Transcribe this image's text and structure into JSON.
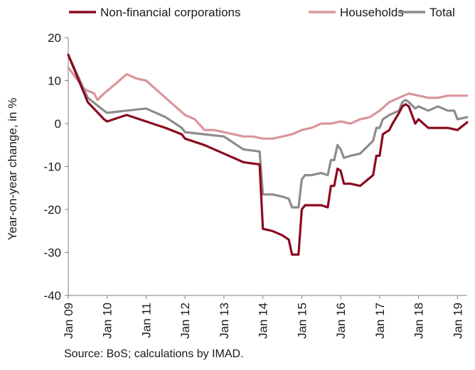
{
  "chart_data": {
    "type": "line",
    "ylabel": "Year-on-year change, in %",
    "ylim": [
      -40,
      20
    ],
    "yticks": [
      20,
      10,
      0,
      -10,
      -20,
      -30,
      -40
    ],
    "xlim": [
      "Jan 09",
      "Apr 19"
    ],
    "xticks": [
      "Jan 09",
      "Jan 10",
      "Jan 11",
      "Jan 12",
      "Jan 13",
      "Jan 14",
      "Jan 15",
      "Jan 16",
      "Jan 17",
      "Jan 18",
      "Jan 19"
    ],
    "grid": false,
    "legend_position": "top",
    "source": "Source: BoS; calculations by IMAD.",
    "series": [
      {
        "name": "Non-financial corporations",
        "color": "#8b0a1f",
        "points": [
          [
            "Jan 09",
            16
          ],
          [
            "Jul 09",
            5
          ],
          [
            "Dec 09",
            1
          ],
          [
            "Jan 10",
            0.5
          ],
          [
            "Jul 10",
            2
          ],
          [
            "Jan 11",
            0.5
          ],
          [
            "Jul 11",
            -1
          ],
          [
            "Dec 11",
            -2.5
          ],
          [
            "Jan 12",
            -3.5
          ],
          [
            "Jul 12",
            -5
          ],
          [
            "Jan 13",
            -7
          ],
          [
            "Jul 13",
            -9
          ],
          [
            "Dec 13",
            -9.5
          ],
          [
            "Jan 14",
            -24.5
          ],
          [
            "Apr 14",
            -25
          ],
          [
            "Jul 14",
            -26
          ],
          [
            "Sep 14",
            -27
          ],
          [
            "Oct 14",
            -30.5
          ],
          [
            "Dec 14",
            -30.5
          ],
          [
            "Jan 15",
            -20
          ],
          [
            "Feb 15",
            -19
          ],
          [
            "Apr 15",
            -19
          ],
          [
            "Jul 15",
            -19
          ],
          [
            "Sep 15",
            -19.5
          ],
          [
            "Oct 15",
            -14.5
          ],
          [
            "Nov 15",
            -14.5
          ],
          [
            "Dec 15",
            -10.5
          ],
          [
            "Jan 16",
            -11
          ],
          [
            "Feb 16",
            -14
          ],
          [
            "Apr 16",
            -14
          ],
          [
            "Jul 16",
            -14.5
          ],
          [
            "Nov 16",
            -12
          ],
          [
            "Dec 16",
            -7.5
          ],
          [
            "Jan 17",
            -7.5
          ],
          [
            "Feb 17",
            -2.5
          ],
          [
            "Apr 17",
            -1.5
          ],
          [
            "May 17",
            0
          ],
          [
            "Jul 17",
            2.5
          ],
          [
            "Aug 17",
            4
          ],
          [
            "Sep 17",
            4.5
          ],
          [
            "Oct 17",
            4
          ],
          [
            "Dec 17",
            0
          ],
          [
            "Jan 18",
            1
          ],
          [
            "Apr 18",
            -1
          ],
          [
            "Jul 18",
            -1
          ],
          [
            "Oct 18",
            -1
          ],
          [
            "Jan 19",
            -1.5
          ],
          [
            "Apr 19",
            0.3
          ]
        ]
      },
      {
        "name": "Households",
        "color": "#d9959a",
        "points": [
          [
            "Jan 09",
            13
          ],
          [
            "Jun 09",
            8
          ],
          [
            "Sep 09",
            7
          ],
          [
            "Oct 09",
            5.5
          ],
          [
            "Dec 09",
            7
          ],
          [
            "Apr 10",
            9.5
          ],
          [
            "Jul 10",
            11.5
          ],
          [
            "Oct 10",
            10.5
          ],
          [
            "Jan 11",
            10
          ],
          [
            "Apr 11",
            8
          ],
          [
            "Jul 11",
            6
          ],
          [
            "Oct 11",
            4
          ],
          [
            "Jan 12",
            2
          ],
          [
            "Apr 12",
            1
          ],
          [
            "Jul 12",
            -1.5
          ],
          [
            "Oct 12",
            -1.5
          ],
          [
            "Jan 13",
            -2
          ],
          [
            "Apr 13",
            -2.5
          ],
          [
            "Jul 13",
            -3
          ],
          [
            "Oct 13",
            -3
          ],
          [
            "Jan 14",
            -3.5
          ],
          [
            "Apr 14",
            -3.5
          ],
          [
            "Jul 14",
            -3
          ],
          [
            "Oct 14",
            -2.5
          ],
          [
            "Jan 15",
            -1.5
          ],
          [
            "Apr 15",
            -1
          ],
          [
            "Jul 15",
            0
          ],
          [
            "Oct 15",
            0
          ],
          [
            "Jan 16",
            0.5
          ],
          [
            "Apr 16",
            0
          ],
          [
            "Jul 16",
            1
          ],
          [
            "Oct 16",
            1.5
          ],
          [
            "Jan 17",
            3
          ],
          [
            "Apr 17",
            5
          ],
          [
            "Jul 17",
            6
          ],
          [
            "Oct 17",
            7
          ],
          [
            "Jan 18",
            6.5
          ],
          [
            "Apr 18",
            6
          ],
          [
            "Jul 18",
            6
          ],
          [
            "Oct 18",
            6.5
          ],
          [
            "Jan 19",
            6.5
          ],
          [
            "Apr 19",
            6.5
          ]
        ]
      },
      {
        "name": "Total",
        "color": "#8c8c8c",
        "points": [
          [
            "Jan 09",
            16
          ],
          [
            "Jul 09",
            6
          ],
          [
            "Dec 09",
            3
          ],
          [
            "Jan 10",
            2.5
          ],
          [
            "Jul 10",
            3
          ],
          [
            "Jan 11",
            3.5
          ],
          [
            "Jul 11",
            1.5
          ],
          [
            "Dec 11",
            -1
          ],
          [
            "Jan 12",
            -2
          ],
          [
            "Jul 12",
            -2.5
          ],
          [
            "Jan 13",
            -3
          ],
          [
            "Jul 13",
            -6
          ],
          [
            "Dec 13",
            -6.5
          ],
          [
            "Jan 14",
            -16.5
          ],
          [
            "Apr 14",
            -16.5
          ],
          [
            "Jul 14",
            -17
          ],
          [
            "Sep 14",
            -17.5
          ],
          [
            "Oct 14",
            -19.5
          ],
          [
            "Dec 14",
            -19.5
          ],
          [
            "Jan 15",
            -13
          ],
          [
            "Feb 15",
            -12
          ],
          [
            "Apr 15",
            -12
          ],
          [
            "Jul 15",
            -11.5
          ],
          [
            "Sep 15",
            -12
          ],
          [
            "Oct 15",
            -8.5
          ],
          [
            "Nov 15",
            -8.5
          ],
          [
            "Dec 15",
            -5
          ],
          [
            "Jan 16",
            -6
          ],
          [
            "Feb 16",
            -8
          ],
          [
            "Apr 16",
            -7.5
          ],
          [
            "Jul 16",
            -7
          ],
          [
            "Nov 16",
            -4
          ],
          [
            "Dec 16",
            -1
          ],
          [
            "Jan 17",
            -1
          ],
          [
            "Feb 17",
            1
          ],
          [
            "Apr 17",
            2
          ],
          [
            "Jul 17",
            3
          ],
          [
            "Aug 17",
            5
          ],
          [
            "Sep 17",
            5.5
          ],
          [
            "Oct 17",
            5
          ],
          [
            "Dec 17",
            3.5
          ],
          [
            "Jan 18",
            4
          ],
          [
            "Apr 18",
            3
          ],
          [
            "Jul 18",
            4
          ],
          [
            "Oct 18",
            3
          ],
          [
            "Dec 18",
            3
          ],
          [
            "Jan 19",
            1
          ],
          [
            "Apr 19",
            1.5
          ]
        ]
      }
    ]
  }
}
